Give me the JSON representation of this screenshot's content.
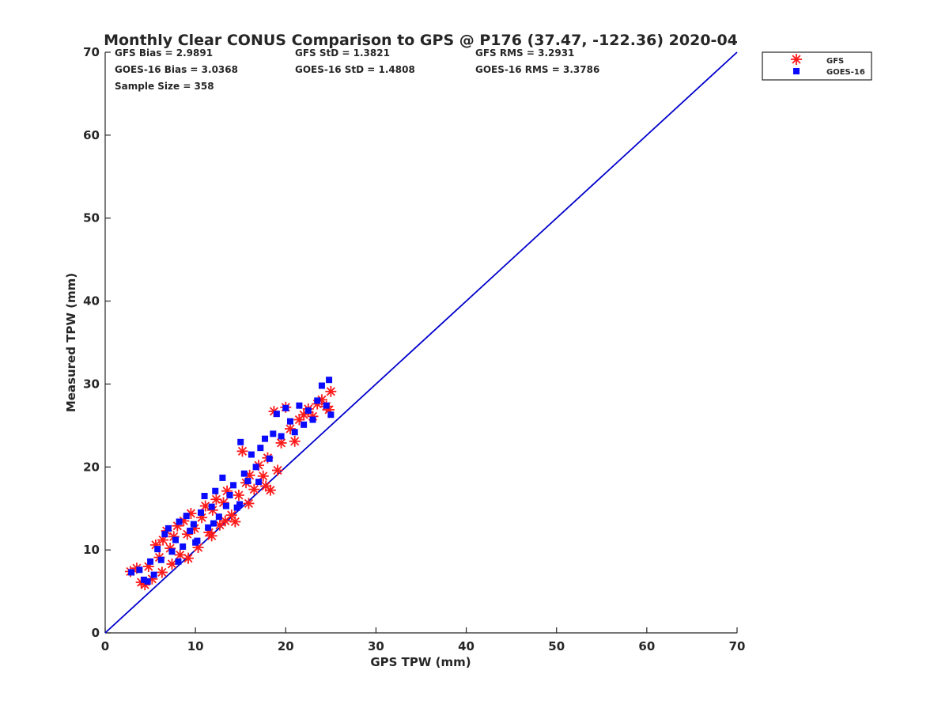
{
  "chart_data": {
    "type": "scatter",
    "title": "Monthly Clear CONUS Comparison to GPS @ P176 (37.47, -122.36) 2020-04",
    "xlabel": "GPS TPW (mm)",
    "ylabel": "Measured TPW (mm)",
    "xlim": [
      0,
      70
    ],
    "ylim": [
      0,
      70
    ],
    "xticks": [
      "0",
      "10",
      "20",
      "30",
      "40",
      "50",
      "60",
      "70"
    ],
    "yticks": [
      "0",
      "10",
      "20",
      "30",
      "40",
      "50",
      "60",
      "70"
    ],
    "grid": false,
    "legend_position": "outside top-right",
    "stats": {
      "row1": [
        "GFS Bias = 2.9891",
        "GFS StD = 1.3821",
        "GFS RMS = 3.2931"
      ],
      "row2": [
        "GOES-16 Bias = 3.0368",
        "GOES-16 StD = 1.4808",
        "GOES-16 RMS = 3.3786"
      ],
      "sample_size": "Sample Size = 358"
    },
    "reference_line": {
      "from": [
        0,
        0
      ],
      "to": [
        70,
        70
      ],
      "color": "#0000cc"
    },
    "series": [
      {
        "name": "GFS",
        "marker": "asterisk",
        "color": "#ff1a1a",
        "points": [
          [
            2.8,
            7.4
          ],
          [
            3.5,
            7.8
          ],
          [
            4.0,
            6.1
          ],
          [
            4.4,
            5.8
          ],
          [
            4.8,
            8.0
          ],
          [
            5.2,
            6.5
          ],
          [
            5.6,
            10.6
          ],
          [
            6.0,
            9.1
          ],
          [
            6.4,
            11.2
          ],
          [
            6.8,
            12.3
          ],
          [
            7.2,
            10.2
          ],
          [
            7.6,
            11.6
          ],
          [
            8.0,
            12.9
          ],
          [
            8.3,
            9.4
          ],
          [
            8.7,
            13.5
          ],
          [
            9.1,
            11.9
          ],
          [
            9.5,
            14.4
          ],
          [
            9.9,
            12.6
          ],
          [
            10.3,
            10.3
          ],
          [
            10.7,
            13.9
          ],
          [
            11.1,
            15.3
          ],
          [
            11.5,
            12.1
          ],
          [
            11.9,
            14.8
          ],
          [
            12.3,
            16.1
          ],
          [
            12.7,
            13.0
          ],
          [
            13.1,
            15.7
          ],
          [
            13.5,
            17.1
          ],
          [
            14.0,
            14.2
          ],
          [
            14.4,
            13.4
          ],
          [
            14.8,
            16.6
          ],
          [
            15.2,
            21.9
          ],
          [
            15.6,
            18.1
          ],
          [
            16.0,
            19.0
          ],
          [
            16.5,
            17.3
          ],
          [
            17.0,
            20.2
          ],
          [
            17.5,
            18.9
          ],
          [
            18.0,
            21.1
          ],
          [
            18.3,
            17.2
          ],
          [
            18.7,
            26.7
          ],
          [
            19.1,
            19.6
          ],
          [
            19.5,
            22.9
          ],
          [
            20.0,
            27.2
          ],
          [
            20.5,
            24.6
          ],
          [
            21.0,
            23.1
          ],
          [
            21.5,
            25.7
          ],
          [
            22.0,
            26.3
          ],
          [
            22.5,
            27.0
          ],
          [
            23.0,
            26.1
          ],
          [
            23.5,
            27.6
          ],
          [
            24.0,
            28.1
          ],
          [
            24.5,
            27.3
          ],
          [
            25.0,
            29.1
          ],
          [
            24.8,
            26.9
          ],
          [
            13.3,
            13.5
          ],
          [
            11.8,
            11.7
          ],
          [
            9.2,
            9.0
          ],
          [
            7.4,
            8.3
          ],
          [
            6.3,
            7.3
          ],
          [
            15.9,
            15.6
          ],
          [
            17.8,
            17.7
          ]
        ]
      },
      {
        "name": "GOES-16",
        "marker": "square",
        "color": "#0a0aff",
        "points": [
          [
            2.9,
            7.3
          ],
          [
            3.8,
            7.6
          ],
          [
            4.3,
            6.4
          ],
          [
            4.7,
            6.2
          ],
          [
            5.0,
            8.6
          ],
          [
            5.4,
            7.0
          ],
          [
            5.8,
            10.1
          ],
          [
            6.2,
            8.8
          ],
          [
            6.6,
            11.9
          ],
          [
            7.0,
            12.6
          ],
          [
            7.4,
            9.8
          ],
          [
            7.8,
            11.2
          ],
          [
            8.2,
            13.4
          ],
          [
            8.6,
            10.4
          ],
          [
            9.0,
            14.1
          ],
          [
            9.4,
            12.3
          ],
          [
            9.8,
            13.1
          ],
          [
            10.2,
            11.1
          ],
          [
            10.6,
            14.5
          ],
          [
            11.0,
            16.5
          ],
          [
            11.4,
            12.7
          ],
          [
            11.8,
            15.2
          ],
          [
            12.2,
            17.1
          ],
          [
            12.6,
            14.0
          ],
          [
            13.0,
            18.7
          ],
          [
            13.4,
            15.3
          ],
          [
            13.8,
            16.6
          ],
          [
            14.2,
            17.8
          ],
          [
            14.6,
            15.1
          ],
          [
            15.0,
            23.0
          ],
          [
            15.4,
            19.2
          ],
          [
            15.8,
            18.3
          ],
          [
            16.2,
            21.5
          ],
          [
            16.7,
            20.0
          ],
          [
            17.2,
            22.3
          ],
          [
            17.7,
            23.4
          ],
          [
            18.2,
            21.0
          ],
          [
            18.6,
            24.0
          ],
          [
            19.0,
            26.4
          ],
          [
            19.5,
            23.7
          ],
          [
            20.0,
            27.1
          ],
          [
            20.5,
            25.5
          ],
          [
            21.0,
            24.2
          ],
          [
            21.5,
            27.4
          ],
          [
            22.0,
            25.1
          ],
          [
            22.5,
            26.8
          ],
          [
            23.0,
            25.7
          ],
          [
            23.5,
            28.0
          ],
          [
            24.0,
            29.8
          ],
          [
            24.5,
            27.4
          ],
          [
            24.8,
            30.5
          ],
          [
            25.0,
            26.3
          ],
          [
            12.0,
            13.2
          ],
          [
            10.0,
            10.9
          ],
          [
            8.1,
            8.6
          ],
          [
            14.9,
            15.5
          ],
          [
            17.0,
            18.2
          ]
        ]
      }
    ]
  }
}
